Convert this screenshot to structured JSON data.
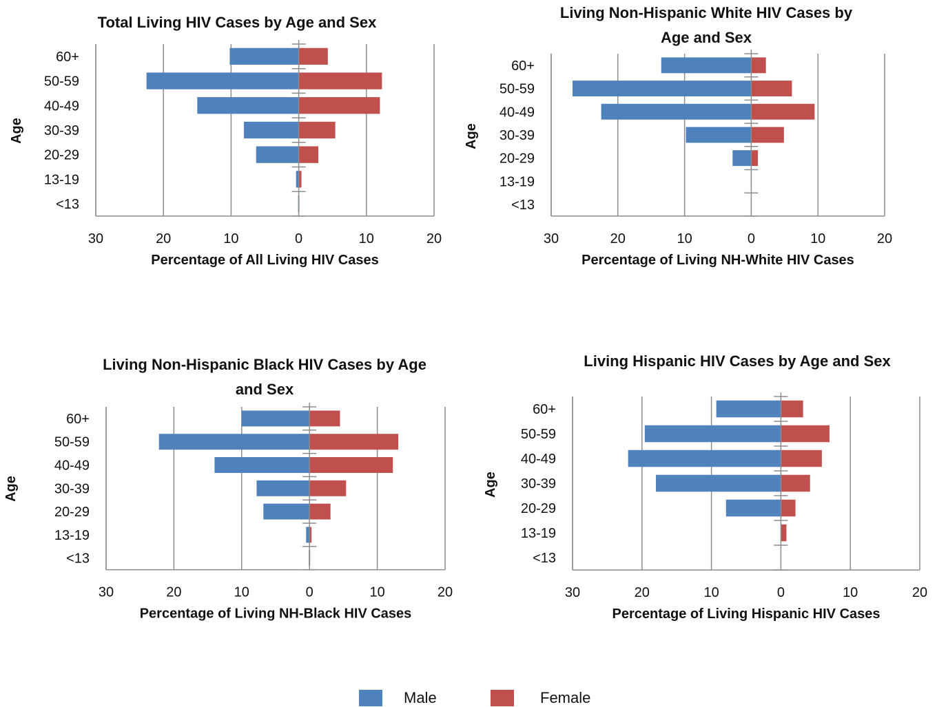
{
  "colors": {
    "male": "#4F81BD",
    "female": "#C0504D",
    "grid": "#8c8c8c"
  },
  "legend": {
    "items": [
      "Male",
      "Female"
    ]
  },
  "chart_data": [
    {
      "type": "bar",
      "orientation": "horizontal-population-pyramid",
      "title": "Total Living HIV Cases by Age and Sex",
      "xlabel": "Percentage of All Living HIV Cases",
      "ylabel": "Age",
      "categories": [
        "60+",
        "50-59",
        "40-49",
        "30-39",
        "20-29",
        "13-19",
        "<13"
      ],
      "xlim": [
        -30,
        20
      ],
      "xticks": [
        -30,
        -20,
        -10,
        0,
        10,
        20
      ],
      "xtick_labels": [
        "30",
        "20",
        "10",
        "0",
        "10",
        "20"
      ],
      "series": [
        {
          "name": "Male",
          "values": [
            10.2,
            22.5,
            15.0,
            8.1,
            6.3,
            0.4,
            0.1
          ]
        },
        {
          "name": "Female",
          "values": [
            4.3,
            12.3,
            12.0,
            5.4,
            2.9,
            0.4,
            0.1
          ]
        }
      ],
      "grid": "vertical",
      "legend": "bottom"
    },
    {
      "type": "bar",
      "orientation": "horizontal-population-pyramid",
      "title": "Living Non-Hispanic White HIV Cases by Age and Sex",
      "title_lines": [
        "Living Non-Hispanic White HIV Cases by",
        "Age and Sex"
      ],
      "xlabel": "Percentage of Living NH-White HIV Cases",
      "ylabel": "Age",
      "categories": [
        "60+",
        "50-59",
        "40-49",
        "30-39",
        "20-29",
        "13-19",
        "<13"
      ],
      "xlim": [
        -30,
        20
      ],
      "xticks": [
        -30,
        -20,
        -10,
        0,
        10,
        20
      ],
      "xtick_labels": [
        "30",
        "20",
        "10",
        "0",
        "10",
        "20"
      ],
      "series": [
        {
          "name": "Male",
          "values": [
            13.5,
            26.8,
            22.5,
            9.8,
            2.8,
            0,
            0
          ]
        },
        {
          "name": "Female",
          "values": [
            2.2,
            6.1,
            9.5,
            4.9,
            1.0,
            0,
            0
          ]
        }
      ],
      "grid": "vertical",
      "legend": "bottom"
    },
    {
      "type": "bar",
      "orientation": "horizontal-population-pyramid",
      "title": "Living Non-Hispanic Black HIV Cases by Age and Sex",
      "title_lines": [
        "Living Non-Hispanic Black HIV Cases by Age",
        "and Sex"
      ],
      "xlabel": "Percentage of Living NH-Black HIV Cases",
      "ylabel": "Age",
      "categories": [
        "60+",
        "50-59",
        "40-49",
        "30-39",
        "20-29",
        "13-19",
        "<13"
      ],
      "xlim": [
        -30,
        20
      ],
      "xticks": [
        -30,
        -20,
        -10,
        0,
        10,
        20
      ],
      "xtick_labels": [
        "30",
        "20",
        "10",
        "0",
        "10",
        "20"
      ],
      "series": [
        {
          "name": "Male",
          "values": [
            10.0,
            22.2,
            14.0,
            7.8,
            6.8,
            0.5,
            0.1
          ]
        },
        {
          "name": "Female",
          "values": [
            4.5,
            13.1,
            12.3,
            5.4,
            3.1,
            0.3,
            0.1
          ]
        }
      ],
      "grid": "vertical",
      "legend": "bottom"
    },
    {
      "type": "bar",
      "orientation": "horizontal-population-pyramid",
      "title": "Living Hispanic HIV Cases by Age and Sex",
      "xlabel": "Percentage of Living Hispanic HIV Cases",
      "ylabel": "Age",
      "categories": [
        "60+",
        "50-59",
        "40-49",
        "30-39",
        "20-29",
        "13-19",
        "<13"
      ],
      "xlim": [
        -30,
        20
      ],
      "xticks": [
        -30,
        -20,
        -10,
        0,
        10,
        20
      ],
      "xtick_labels": [
        "30",
        "20",
        "10",
        "0",
        "10",
        "20"
      ],
      "series": [
        {
          "name": "Male",
          "values": [
            9.3,
            19.6,
            22.0,
            18.0,
            7.9,
            0,
            0
          ]
        },
        {
          "name": "Female",
          "values": [
            3.2,
            7.0,
            5.9,
            4.2,
            2.1,
            0.8,
            0
          ]
        }
      ],
      "grid": "vertical",
      "legend": "bottom"
    }
  ]
}
